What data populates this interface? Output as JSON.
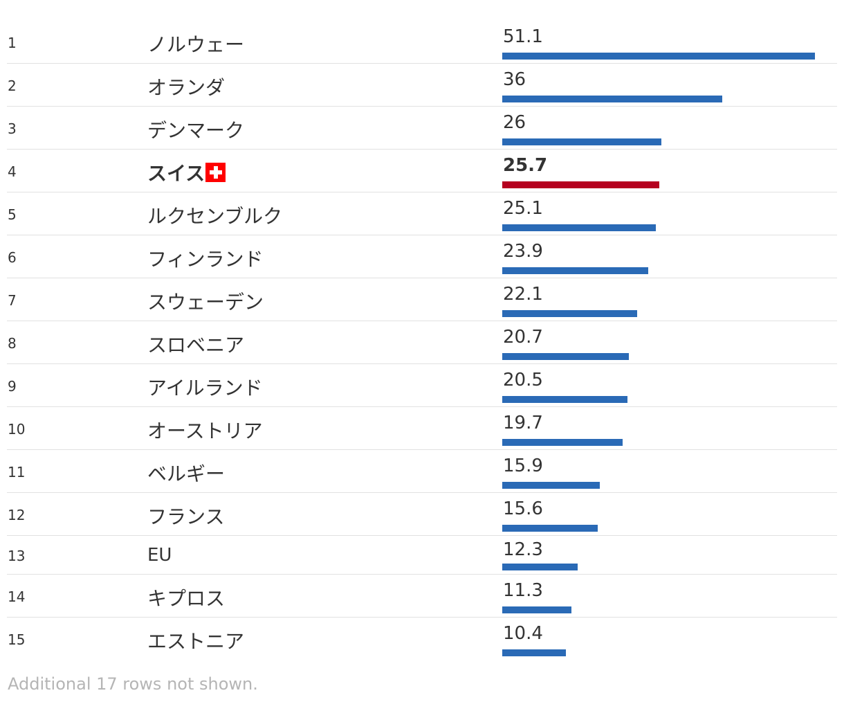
{
  "chart_data": {
    "type": "table",
    "columns": [
      "rank",
      "name",
      "value"
    ],
    "xlim": [
      0,
      51.1
    ],
    "colors": {
      "bar": "#2a6ab6",
      "highlight_bar": "#b5001f"
    },
    "rows": [
      {
        "rank": "1",
        "name": "ノルウェー",
        "value": 51.1,
        "value_label": "51.1"
      },
      {
        "rank": "2",
        "name": "オランダ",
        "value": 36,
        "value_label": "36"
      },
      {
        "rank": "3",
        "name": "デンマーク",
        "value": 26,
        "value_label": "26"
      },
      {
        "rank": "4",
        "name": "スイス",
        "value": 25.7,
        "value_label": "25.7",
        "highlight": true,
        "flag": "swiss-flag-icon"
      },
      {
        "rank": "5",
        "name": "ルクセンブルク",
        "value": 25.1,
        "value_label": "25.1"
      },
      {
        "rank": "6",
        "name": "フィンランド",
        "value": 23.9,
        "value_label": "23.9"
      },
      {
        "rank": "7",
        "name": "スウェーデン",
        "value": 22.1,
        "value_label": "22.1"
      },
      {
        "rank": "8",
        "name": "スロベニア",
        "value": 20.7,
        "value_label": "20.7"
      },
      {
        "rank": "9",
        "name": "アイルランド",
        "value": 20.5,
        "value_label": "20.5"
      },
      {
        "rank": "10",
        "name": "オーストリア",
        "value": 19.7,
        "value_label": "19.7"
      },
      {
        "rank": "11",
        "name": "ベルギー",
        "value": 15.9,
        "value_label": "15.9"
      },
      {
        "rank": "12",
        "name": "フランス",
        "value": 15.6,
        "value_label": "15.6"
      },
      {
        "rank": "13",
        "name": "EU",
        "value": 12.3,
        "value_label": "12.3",
        "compact": true
      },
      {
        "rank": "14",
        "name": "キプロス",
        "value": 11.3,
        "value_label": "11.3"
      },
      {
        "rank": "15",
        "name": "エストニア",
        "value": 10.4,
        "value_label": "10.4"
      }
    ]
  },
  "footnote": "Additional 17 rows not shown."
}
